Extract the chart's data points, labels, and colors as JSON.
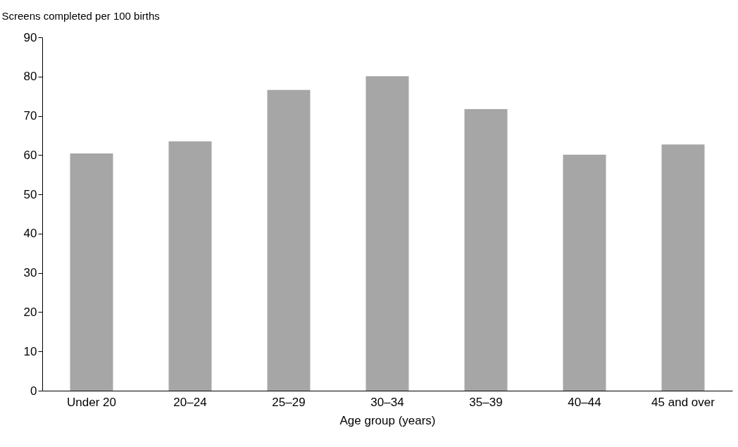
{
  "chart_data": {
    "type": "bar",
    "ylabel": "Screens completed per 100 births",
    "xlabel": "Age group (years)",
    "categories": [
      "Under 20",
      "20–24",
      "25–29",
      "30–34",
      "35–39",
      "40–44",
      "45 and over"
    ],
    "values": [
      60.4,
      63.5,
      76.6,
      80.1,
      71.7,
      60.1,
      62.7
    ],
    "color": "#a6a6a6",
    "ylim": [
      0,
      90
    ],
    "yticks": [
      0,
      10,
      20,
      30,
      40,
      50,
      60,
      70,
      80,
      90
    ],
    "grid": false
  }
}
